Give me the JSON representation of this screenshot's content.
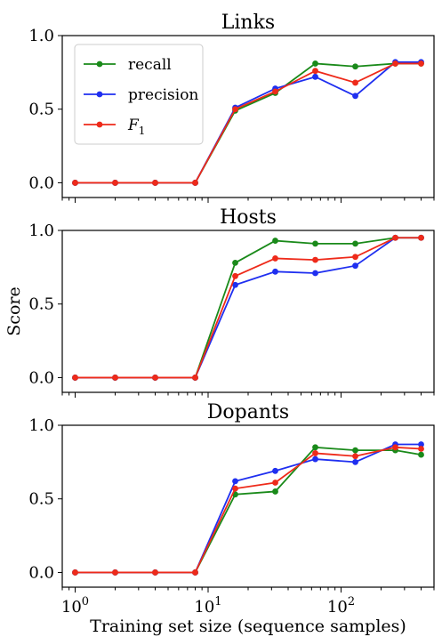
{
  "chart_data": [
    {
      "type": "line",
      "title": "Links",
      "x": [
        1,
        2,
        4,
        8,
        16,
        32,
        64,
        128,
        256,
        400
      ],
      "series": [
        {
          "name": "recall",
          "color": "#1a8a1a",
          "values": [
            0,
            0,
            0,
            0,
            0.49,
            0.61,
            0.81,
            0.79,
            0.81,
            0.81
          ]
        },
        {
          "name": "precision",
          "color": "#1f2ff0",
          "values": [
            0,
            0,
            0,
            0,
            0.51,
            0.64,
            0.72,
            0.59,
            0.82,
            0.82
          ]
        },
        {
          "name": "F_1",
          "color": "#ee2a1a",
          "values": [
            0,
            0,
            0,
            0,
            0.5,
            0.62,
            0.76,
            0.68,
            0.81,
            0.81
          ]
        }
      ],
      "ylim": [
        -0.1,
        1.0
      ],
      "yticks": [
        "0.0",
        "0.5",
        "1.0"
      ],
      "legend": "top-left"
    },
    {
      "type": "line",
      "title": "Hosts",
      "x": [
        1,
        2,
        4,
        8,
        16,
        32,
        64,
        128,
        256,
        400
      ],
      "series": [
        {
          "name": "recall",
          "color": "#1a8a1a",
          "values": [
            0,
            0,
            0,
            0,
            0.78,
            0.93,
            0.91,
            0.91,
            0.95,
            0.95
          ]
        },
        {
          "name": "precision",
          "color": "#1f2ff0",
          "values": [
            0,
            0,
            0,
            0,
            0.63,
            0.72,
            0.71,
            0.76,
            0.95,
            0.95
          ]
        },
        {
          "name": "F_1",
          "color": "#ee2a1a",
          "values": [
            0,
            0,
            0,
            0,
            0.69,
            0.81,
            0.8,
            0.82,
            0.95,
            0.95
          ]
        }
      ],
      "ylim": [
        -0.1,
        1.0
      ],
      "yticks": [
        "0.0",
        "0.5",
        "1.0"
      ],
      "ylabel": "Score"
    },
    {
      "type": "line",
      "title": "Dopants",
      "x": [
        1,
        2,
        4,
        8,
        16,
        32,
        64,
        128,
        256,
        400
      ],
      "series": [
        {
          "name": "recall",
          "color": "#1a8a1a",
          "values": [
            0,
            0,
            0,
            0,
            0.53,
            0.55,
            0.85,
            0.83,
            0.83,
            0.8
          ]
        },
        {
          "name": "precision",
          "color": "#1f2ff0",
          "values": [
            0,
            0,
            0,
            0,
            0.62,
            0.69,
            0.77,
            0.75,
            0.87,
            0.87
          ]
        },
        {
          "name": "F_1",
          "color": "#ee2a1a",
          "values": [
            0,
            0,
            0,
            0,
            0.57,
            0.61,
            0.81,
            0.79,
            0.85,
            0.84
          ]
        }
      ],
      "ylim": [
        -0.1,
        1.0
      ],
      "yticks": [
        "0.0",
        "0.5",
        "1.0"
      ],
      "xlabel": "Training set size (sequence samples)",
      "xscale": "log",
      "xlim": [
        0.8,
        500
      ],
      "xtick_labels": [
        "10",
        "10",
        "10"
      ],
      "xtick_exponents": [
        "0",
        "1",
        "2"
      ]
    }
  ]
}
